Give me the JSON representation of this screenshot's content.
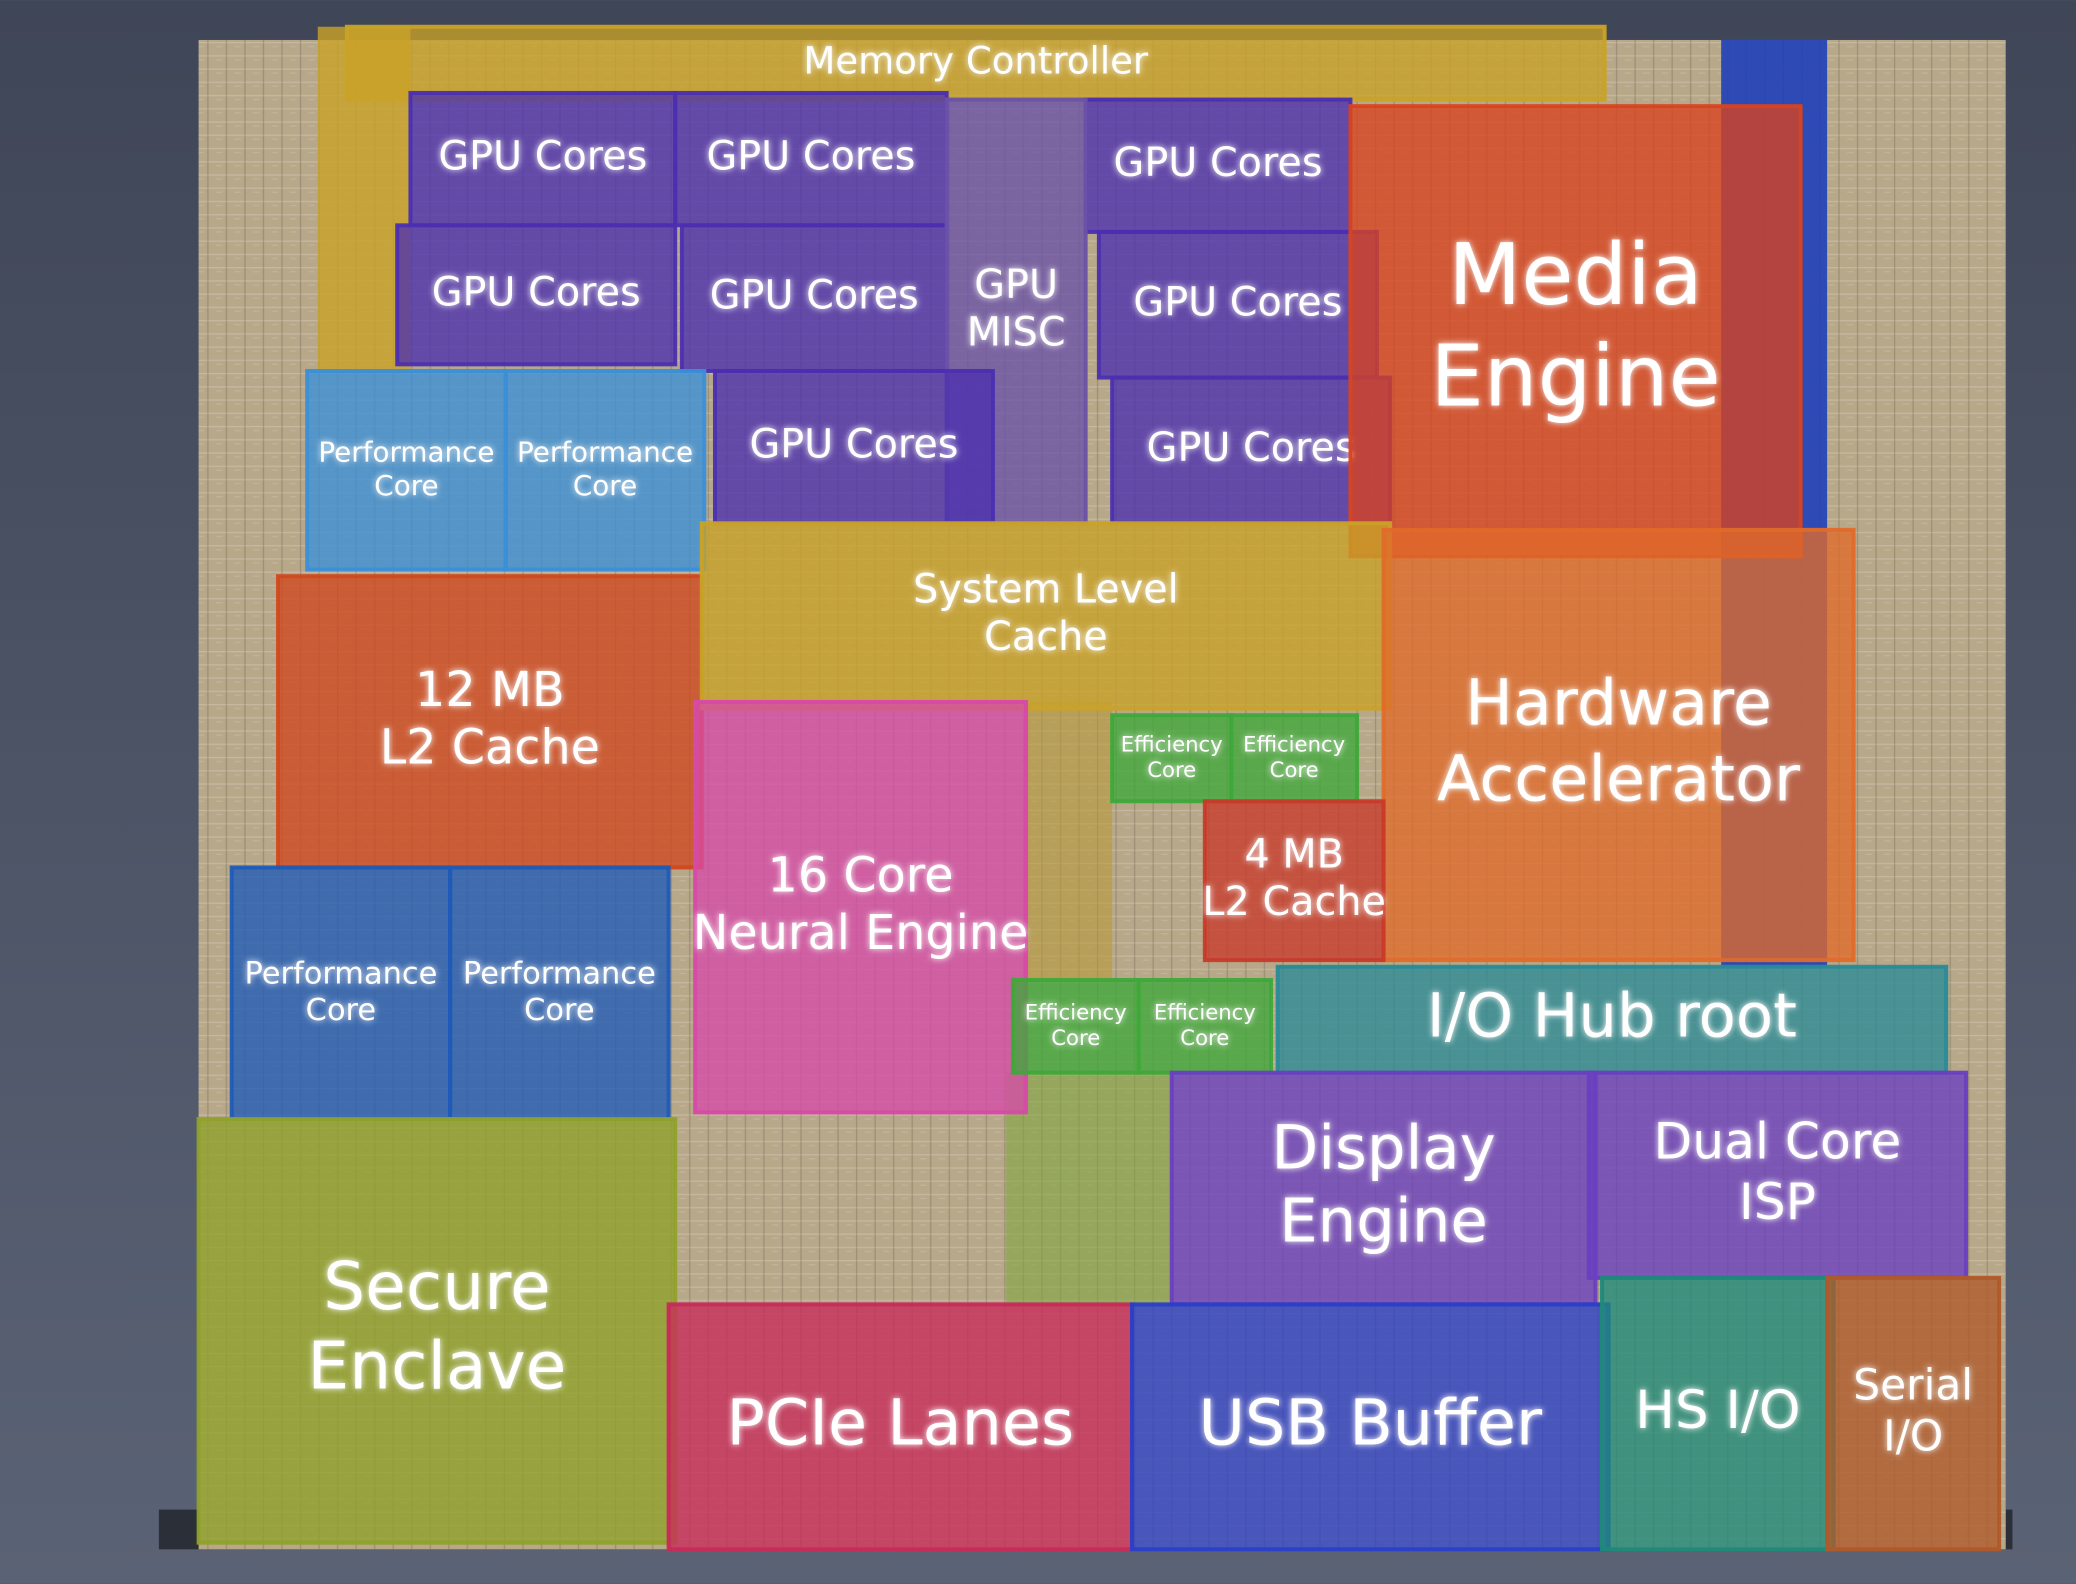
{
  "nodes": [
    {
      "lines": [
        "Memory Controller"
      ]
    },
    {
      "lines": [
        "GPU Cores"
      ]
    },
    {
      "lines": [
        "GPU Cores"
      ]
    },
    {
      "lines": [
        "GPU Cores"
      ]
    },
    {
      "lines": [
        "GPU Cores"
      ]
    },
    {
      "lines": [
        "GPU Cores"
      ]
    },
    {
      "lines": [
        "GPU",
        "MISC"
      ]
    },
    {
      "lines": [
        "GPU Cores"
      ]
    },
    {
      "lines": [
        "GPU Cores"
      ]
    },
    {
      "lines": [
        "GPU Cores"
      ]
    },
    {
      "lines": [
        "Media",
        "Engine"
      ]
    },
    {
      "lines": [
        "Performance",
        "Core"
      ]
    },
    {
      "lines": [
        "Performance",
        "Core"
      ]
    },
    {
      "lines": [
        "12 MB",
        "L2 Cache"
      ]
    },
    {
      "lines": [
        "System Level",
        "Cache"
      ]
    },
    {
      "lines": [
        "Hardware",
        "Accelerator"
      ]
    },
    {
      "lines": [
        "Efficiency",
        "Core"
      ]
    },
    {
      "lines": [
        "Efficiency",
        "Core"
      ]
    },
    {
      "lines": [
        "4 MB",
        "L2 Cache"
      ]
    },
    {
      "lines": [
        "16 Core",
        "Neural Engine"
      ]
    },
    {
      "lines": [
        "Efficiency",
        "Core"
      ]
    },
    {
      "lines": [
        "Efficiency",
        "Core"
      ]
    },
    {
      "lines": [
        "I/O Hub root"
      ]
    },
    {
      "lines": [
        "Performance",
        "Core"
      ]
    },
    {
      "lines": [
        "Performance",
        "Core"
      ]
    },
    {
      "lines": [
        "Secure",
        "Enclave"
      ]
    },
    {
      "lines": [
        "Display",
        "Engine"
      ]
    },
    {
      "lines": [
        "Dual Core",
        "ISP"
      ]
    },
    {
      "lines": [
        "PCIe Lanes"
      ]
    },
    {
      "lines": [
        "USB Buffer"
      ]
    },
    {
      "lines": [
        "HS I/O"
      ]
    },
    {
      "lines": [
        "Serial",
        "I/O"
      ]
    }
  ]
}
